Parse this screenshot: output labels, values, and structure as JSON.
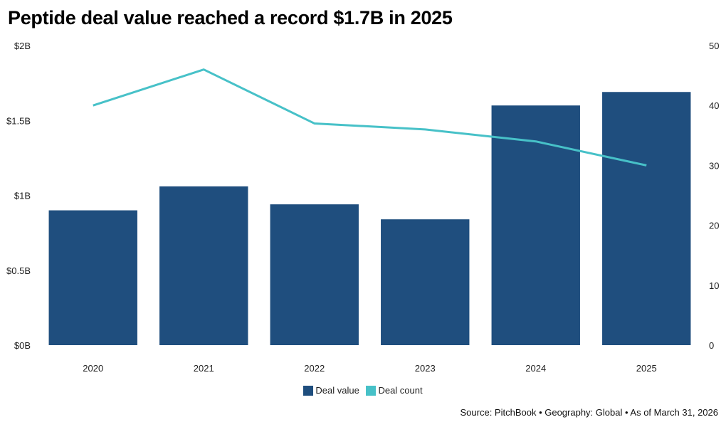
{
  "chart_data": {
    "type": "bar",
    "title": "Peptide deal value reached a record $1.7B in 2025",
    "categories": [
      "2020",
      "2021",
      "2022",
      "2023",
      "2024",
      "2025"
    ],
    "series": [
      {
        "name": "Deal value",
        "type": "bar",
        "axis": "left",
        "unit": "B USD",
        "values": [
          0.9,
          1.06,
          0.94,
          0.84,
          1.6,
          1.69
        ],
        "color": "#1f4e7e"
      },
      {
        "name": "Deal count",
        "type": "line",
        "axis": "right",
        "values": [
          40,
          46,
          37,
          36,
          34,
          30
        ],
        "color": "#47c1c8"
      }
    ],
    "y_left": {
      "min": 0,
      "max": 2,
      "ticks": [
        0,
        0.5,
        1,
        1.5,
        2
      ],
      "tick_labels": [
        "$0B",
        "$0.5B",
        "$1B",
        "$1.5B",
        "$2B"
      ]
    },
    "y_right": {
      "min": 0,
      "max": 50,
      "ticks": [
        0,
        10,
        20,
        30,
        40,
        50
      ],
      "tick_labels": [
        "0",
        "10",
        "20",
        "30",
        "40",
        "50"
      ]
    },
    "grid": false,
    "legend_position": "bottom-center",
    "source": "Source: PitchBook • Geography: Global • As of March 31, 2026"
  }
}
